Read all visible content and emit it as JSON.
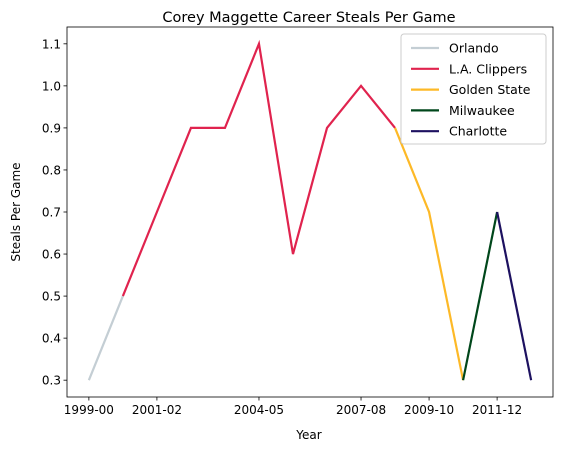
{
  "chart_data": {
    "type": "line",
    "title": "Corey Maggette Career Steals Per Game",
    "xlabel": "Year",
    "ylabel": "Steals Per Game",
    "seasons": [
      "1999-00",
      "2000-01",
      "2001-02",
      "2002-03",
      "2003-04",
      "2004-05",
      "2005-06",
      "2006-07",
      "2007-08",
      "2008-09",
      "2009-10",
      "2010-11",
      "2011-12",
      "2012-13"
    ],
    "x_tick_labels": [
      "1999-00",
      "2001-02",
      "2004-05",
      "2007-08",
      "2009-10",
      "2011-12"
    ],
    "y_ticks": [
      "0.3",
      "0.4",
      "0.5",
      "0.6",
      "0.7",
      "0.8",
      "0.9",
      "1.0",
      "1.1"
    ],
    "ylim": [
      0.26,
      1.14
    ],
    "legend_position": "top-right",
    "series": [
      {
        "name": "Orlando",
        "color": "#c4ced4",
        "x": [
          "1999-00",
          "2000-01"
        ],
        "values": [
          0.3,
          0.5
        ]
      },
      {
        "name": "L.A. Clippers",
        "color": "#e0234e",
        "x": [
          "2000-01",
          "2001-02",
          "2002-03",
          "2003-04",
          "2004-05",
          "2005-06",
          "2006-07",
          "2007-08",
          "2008-09"
        ],
        "values": [
          0.5,
          0.7,
          0.9,
          0.9,
          1.1,
          0.6,
          0.9,
          1.0,
          0.9
        ]
      },
      {
        "name": "Golden State",
        "color": "#fdb927",
        "x": [
          "2008-09",
          "2009-10",
          "2010-11"
        ],
        "values": [
          0.9,
          0.7,
          0.3
        ]
      },
      {
        "name": "Milwaukee",
        "color": "#00471b",
        "x": [
          "2010-11",
          "2011-12"
        ],
        "values": [
          0.3,
          0.7
        ]
      },
      {
        "name": "Charlotte",
        "color": "#1d1160",
        "x": [
          "2011-12",
          "2012-13"
        ],
        "values": [
          0.7,
          0.3
        ]
      }
    ]
  }
}
